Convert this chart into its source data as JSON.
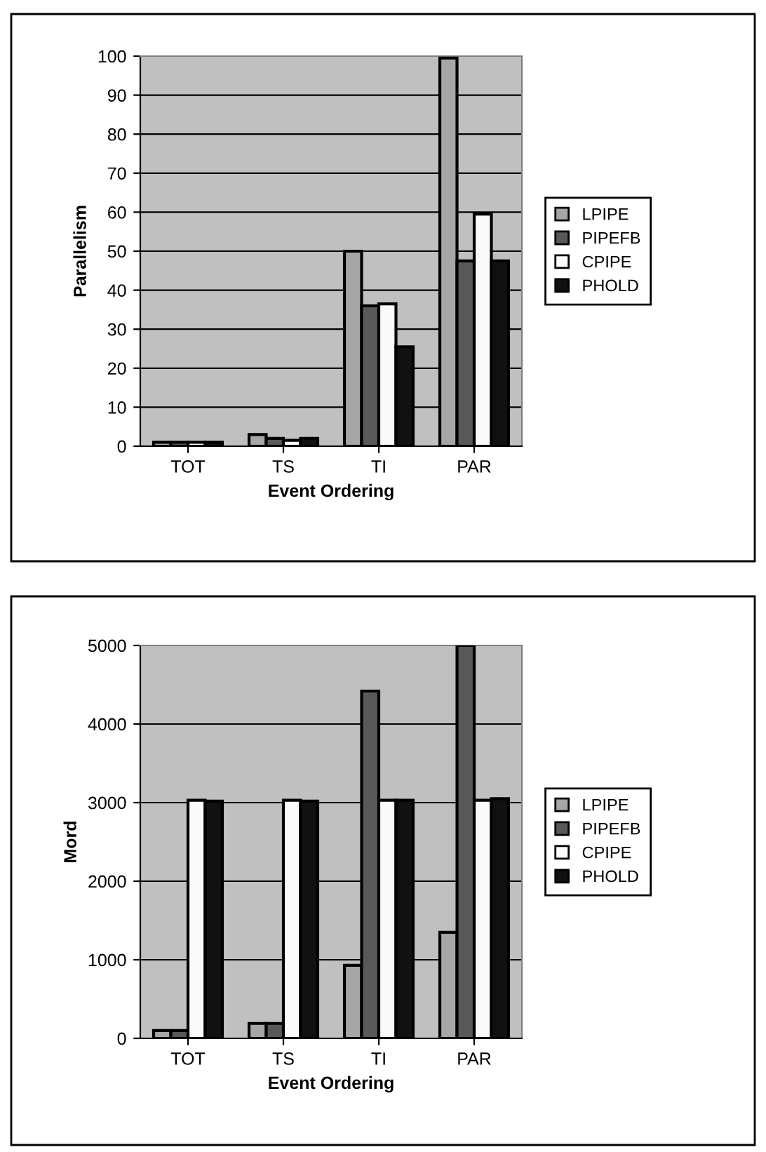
{
  "chart_data": [
    {
      "type": "bar",
      "ylabel": "Parallelism",
      "xlabel": "Event Ordering",
      "categories": [
        "TOT",
        "TS",
        "TI",
        "PAR"
      ],
      "ylim": [
        0,
        100
      ],
      "yticks": [
        0,
        10,
        20,
        30,
        40,
        50,
        60,
        70,
        80,
        90,
        100
      ],
      "grid": "y",
      "legend": "right",
      "series": [
        {
          "name": "LPIPE",
          "color": "#a6a6a6",
          "values": [
            1,
            3,
            50,
            99.5
          ]
        },
        {
          "name": "PIPEFB",
          "color": "#595959",
          "values": [
            1,
            2,
            36,
            47.5
          ]
        },
        {
          "name": "CPIPE",
          "color": "#fafafa",
          "values": [
            1,
            1.5,
            36.5,
            59.5
          ]
        },
        {
          "name": "PHOLD",
          "color": "#111111",
          "values": [
            1,
            2,
            25.5,
            47.5
          ]
        }
      ]
    },
    {
      "type": "bar",
      "ylabel": "Mord",
      "xlabel": "Event Ordering",
      "categories": [
        "TOT",
        "TS",
        "TI",
        "PAR"
      ],
      "ylim": [
        0,
        5000
      ],
      "yticks": [
        0,
        1000,
        2000,
        3000,
        4000,
        5000
      ],
      "grid": "y",
      "legend": "right",
      "series": [
        {
          "name": "LPIPE",
          "color": "#a6a6a6",
          "values": [
            100,
            190,
            930,
            1350
          ]
        },
        {
          "name": "PIPEFB",
          "color": "#595959",
          "values": [
            100,
            190,
            4420,
            5000
          ]
        },
        {
          "name": "CPIPE",
          "color": "#fafafa",
          "values": [
            3030,
            3030,
            3030,
            3030
          ]
        },
        {
          "name": "PHOLD",
          "color": "#111111",
          "values": [
            3020,
            3020,
            3030,
            3050
          ]
        }
      ]
    }
  ]
}
